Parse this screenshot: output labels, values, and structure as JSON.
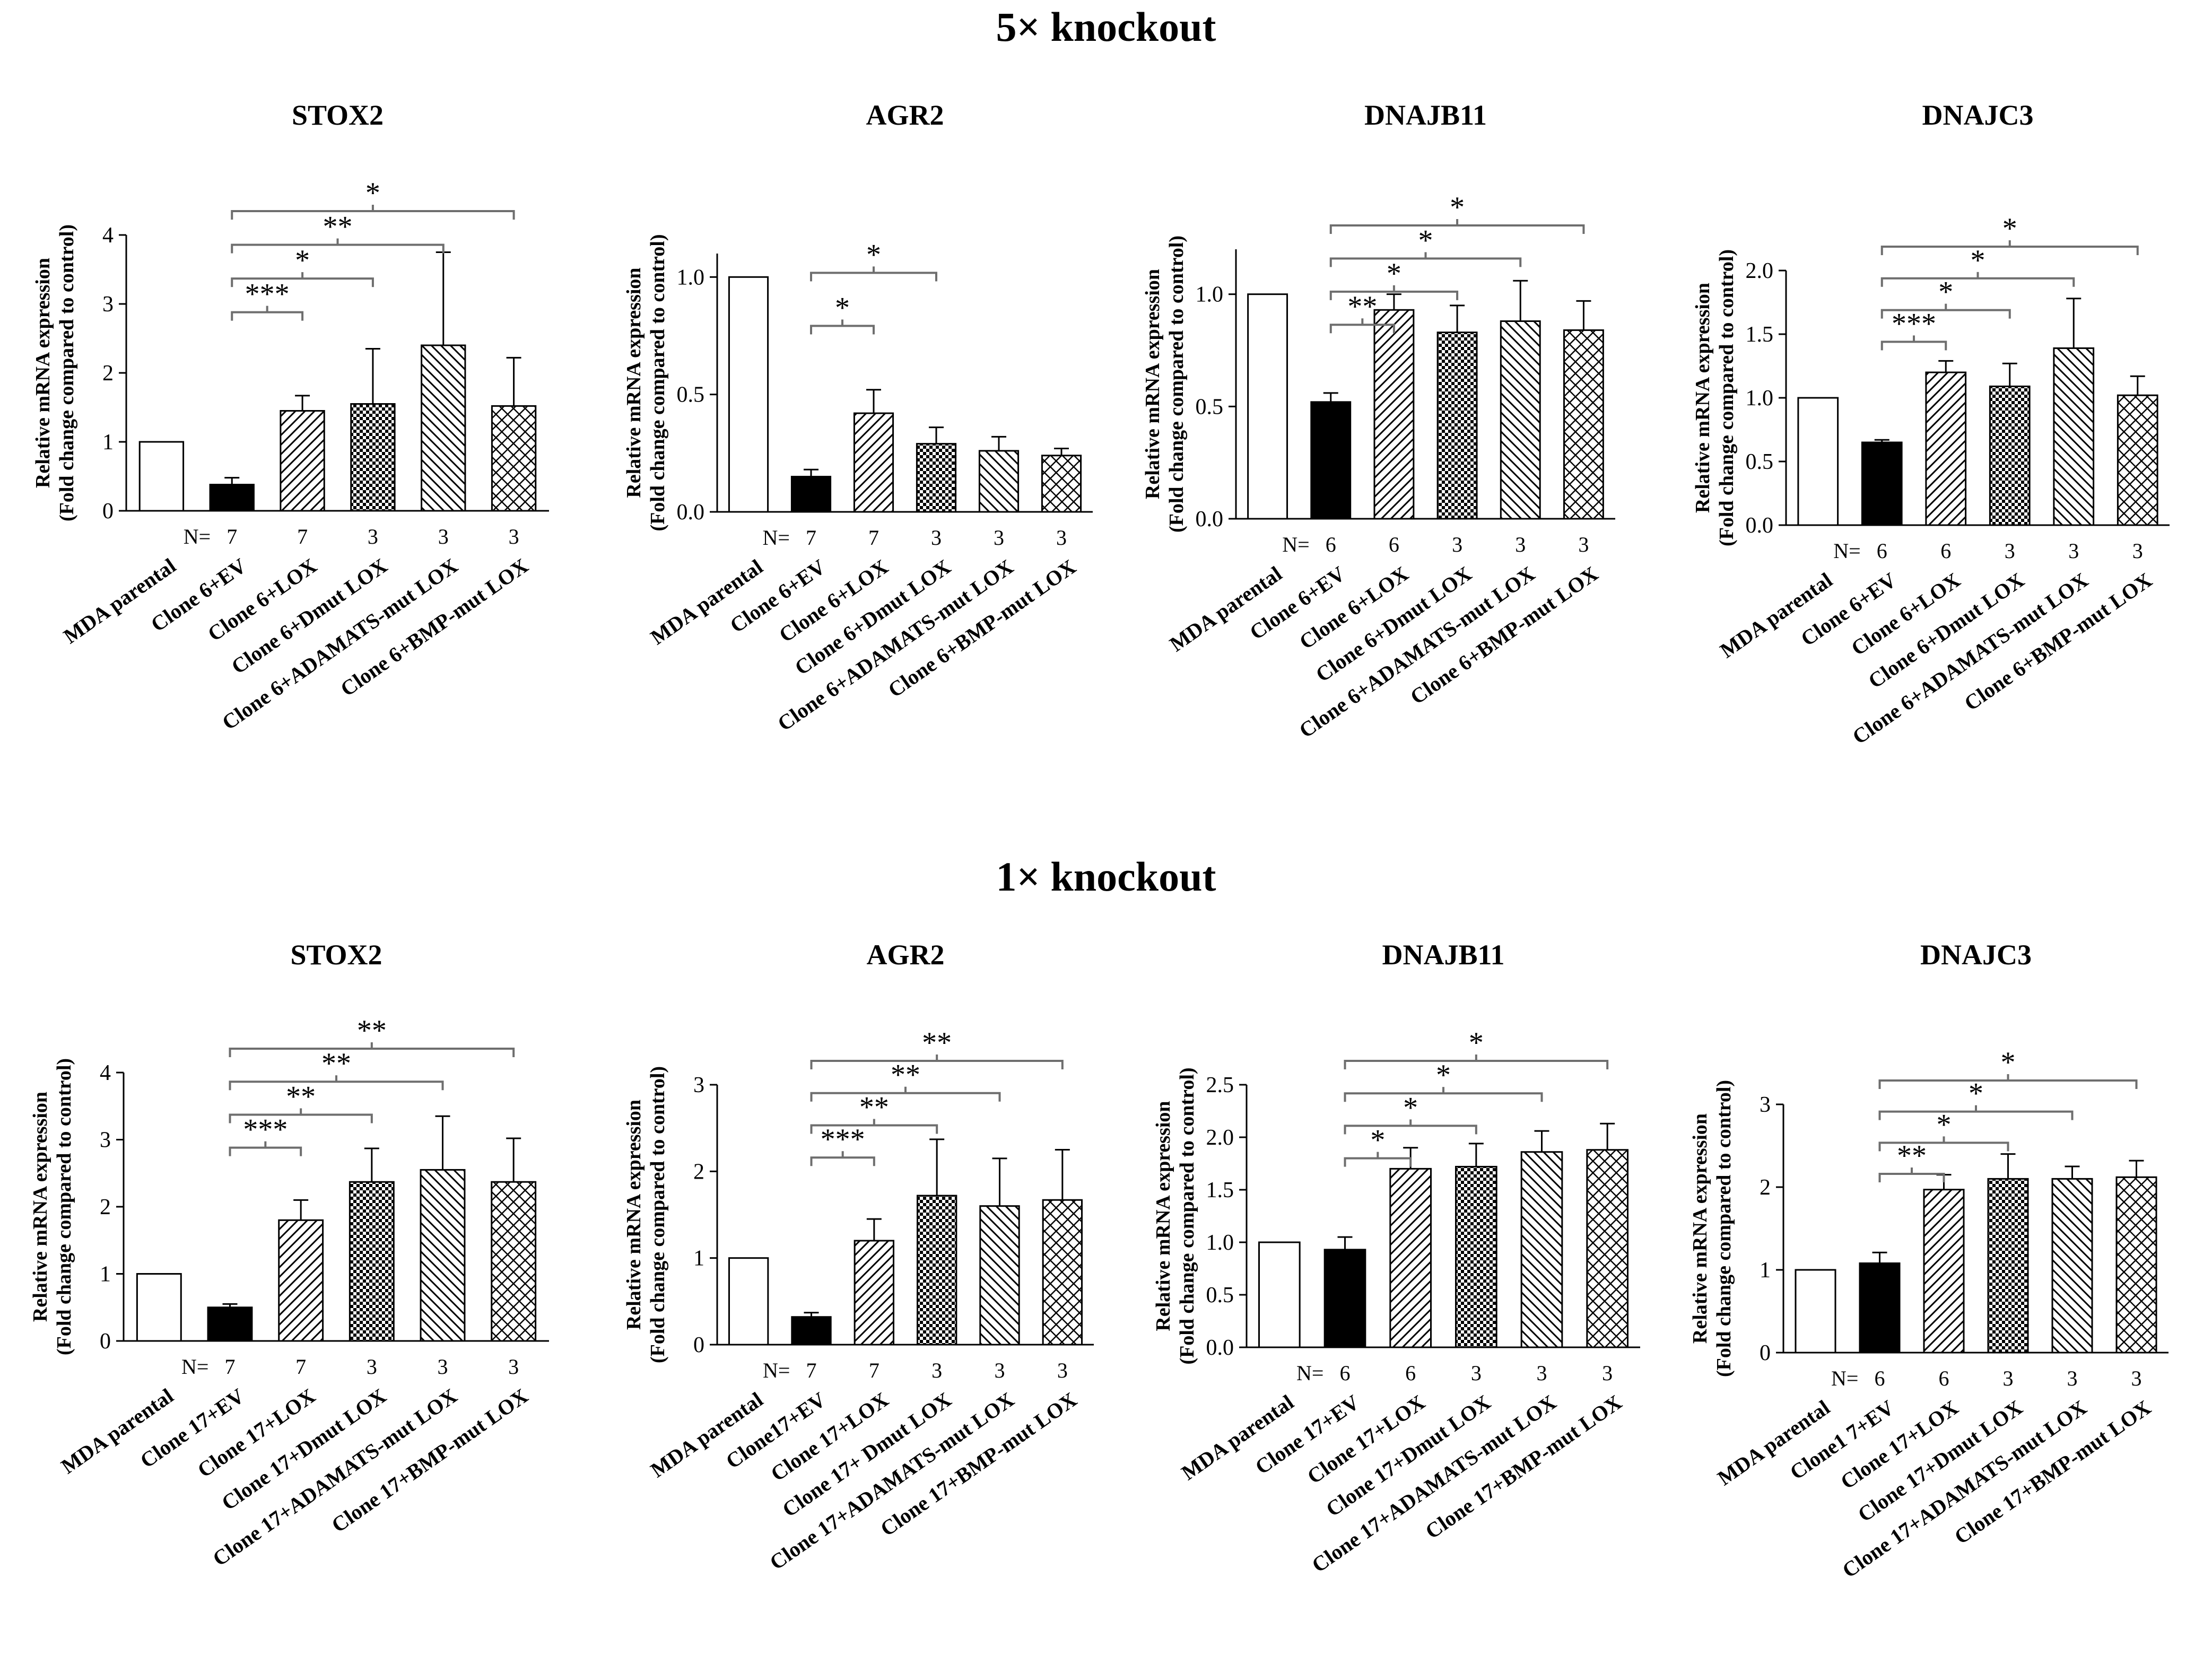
{
  "sections": [
    {
      "title": "5× knockout"
    },
    {
      "title": "1× knockout"
    }
  ],
  "colors": {
    "axis": "#000000",
    "bracket": "#6e6e6e",
    "bar_fill": "#ffffff",
    "solid": "#000000"
  },
  "chart_data": [
    {
      "type": "bar",
      "title": "STOX2",
      "ylabel": "Relative mRNA expression",
      "ylabel2": "(Fold change compared to control)",
      "categories": [
        "MDA parental",
        "Clone 6+EV",
        "Clone 6+LOX",
        "Clone 6+Dmut LOX",
        "Clone 6+ADAMATS-mut LOX",
        "Clone 6+BMP-mut LOX"
      ],
      "values": [
        1.0,
        0.38,
        1.45,
        1.55,
        2.4,
        1.52
      ],
      "errors": [
        null,
        0.1,
        0.22,
        0.8,
        1.35,
        0.7
      ],
      "patterns": [
        "open",
        "solid",
        "diag",
        "checker",
        "backdiag",
        "cross"
      ],
      "n_label": "N=",
      "n_values": [
        "7",
        "7",
        "3",
        "3",
        "3"
      ],
      "ylim": [
        0,
        4
      ],
      "yticks": [
        "0",
        "1",
        "2",
        "3",
        "4"
      ],
      "significance": [
        {
          "from": 1,
          "to": 2,
          "label": "***"
        },
        {
          "from": 1,
          "to": 3,
          "label": "*"
        },
        {
          "from": 1,
          "to": 4,
          "label": "**"
        },
        {
          "from": 1,
          "to": 5,
          "label": "*"
        }
      ]
    },
    {
      "type": "bar",
      "title": "AGR2",
      "ylabel": "Relative mRNA expression",
      "ylabel2": "(Fold change compared to control)",
      "categories": [
        "MDA parental",
        "Clone 6+EV",
        "Clone 6+LOX",
        "Clone 6+Dmut LOX",
        "Clone 6+ADAMATS-mut LOX",
        "Clone 6+BMP-mut LOX"
      ],
      "values": [
        1.0,
        0.15,
        0.42,
        0.29,
        0.26,
        0.24
      ],
      "errors": [
        null,
        0.03,
        0.1,
        0.07,
        0.06,
        0.03
      ],
      "patterns": [
        "open",
        "solid",
        "diag",
        "checker",
        "backdiag",
        "cross"
      ],
      "n_label": "N=",
      "n_values": [
        "7",
        "7",
        "3",
        "3",
        "3"
      ],
      "ylim": [
        0,
        1.1
      ],
      "yticks": [
        "0.0",
        "0.5",
        "1.0"
      ],
      "significance": [
        {
          "from": 1,
          "to": 2,
          "label": "*"
        },
        {
          "from": 1,
          "to": 3,
          "label": "*"
        }
      ]
    },
    {
      "type": "bar",
      "title": "DNAJB11",
      "ylabel": "Relative mRNA expression",
      "ylabel2": "(Fold change compared to control)",
      "categories": [
        "MDA parental",
        "Clone 6+EV",
        "Clone 6+LOX",
        "Clone 6+Dmut LOX",
        "Clone 6+ADAMATS-mut LOX",
        "Clone 6+BMP-mut LOX"
      ],
      "values": [
        1.0,
        0.52,
        0.93,
        0.83,
        0.88,
        0.84
      ],
      "errors": [
        null,
        0.04,
        0.07,
        0.12,
        0.18,
        0.13
      ],
      "patterns": [
        "open",
        "solid",
        "diag",
        "checker",
        "backdiag",
        "cross"
      ],
      "n_label": "N=",
      "n_values": [
        "6",
        "6",
        "3",
        "3",
        "3"
      ],
      "ylim": [
        0,
        1.2
      ],
      "yticks": [
        "0.0",
        "0.5",
        "1.0"
      ],
      "significance": [
        {
          "from": 1,
          "to": 2,
          "label": "**"
        },
        {
          "from": 1,
          "to": 3,
          "label": "*"
        },
        {
          "from": 1,
          "to": 4,
          "label": "*"
        },
        {
          "from": 1,
          "to": 5,
          "label": "*"
        }
      ]
    },
    {
      "type": "bar",
      "title": "DNAJC3",
      "ylabel": "Relative mRNA expression",
      "ylabel2": "(Fold change compared to control)",
      "categories": [
        "MDA parental",
        "Clone 6+EV",
        "Clone 6+LOX",
        "Clone 6+Dmut LOX",
        "Clone 6+ADAMATS-mut LOX",
        "Clone 6+BMP-mut LOX"
      ],
      "values": [
        1.0,
        0.65,
        1.2,
        1.09,
        1.39,
        1.02
      ],
      "errors": [
        null,
        0.02,
        0.09,
        0.18,
        0.39,
        0.15
      ],
      "patterns": [
        "open",
        "solid",
        "diag",
        "checker",
        "backdiag",
        "cross"
      ],
      "n_label": "N=",
      "n_values": [
        "6",
        "6",
        "3",
        "3",
        "3"
      ],
      "ylim": [
        0,
        2.0
      ],
      "yticks": [
        "0.0",
        "0.5",
        "1.0",
        "1.5",
        "2.0"
      ],
      "significance": [
        {
          "from": 1,
          "to": 2,
          "label": "***"
        },
        {
          "from": 1,
          "to": 3,
          "label": "*"
        },
        {
          "from": 1,
          "to": 4,
          "label": "*"
        },
        {
          "from": 1,
          "to": 5,
          "label": "*"
        }
      ]
    },
    {
      "type": "bar",
      "title": "STOX2",
      "ylabel": "Relative mRNA expression",
      "ylabel2": "(Fold change compared to control)",
      "categories": [
        "MDA parental",
        "Clone 17+EV",
        "Clone 17+LOX",
        "Clone 17+Dmut LOX",
        "Clone 17+ADAMATS-mut LOX",
        "Clone 17+BMP-mut LOX"
      ],
      "values": [
        1.0,
        0.5,
        1.8,
        2.37,
        2.55,
        2.37
      ],
      "errors": [
        null,
        0.05,
        0.3,
        0.5,
        0.8,
        0.65
      ],
      "patterns": [
        "open",
        "solid",
        "diag",
        "checker",
        "backdiag",
        "cross"
      ],
      "n_label": "N=",
      "n_values": [
        "7",
        "7",
        "3",
        "3",
        "3"
      ],
      "ylim": [
        0,
        4
      ],
      "yticks": [
        "0",
        "1",
        "2",
        "3",
        "4"
      ],
      "significance": [
        {
          "from": 1,
          "to": 2,
          "label": "***"
        },
        {
          "from": 1,
          "to": 3,
          "label": "**"
        },
        {
          "from": 1,
          "to": 4,
          "label": "**"
        },
        {
          "from": 1,
          "to": 5,
          "label": "**"
        }
      ]
    },
    {
      "type": "bar",
      "title": "AGR2",
      "ylabel": "Relative mRNA expression",
      "ylabel2": "(Fold change compared to control)",
      "categories": [
        "MDA parental",
        "Clone17+EV",
        "Clone 17+LOX",
        "Clone 17+ Dmut LOX",
        "Clone 17+ADAMATS-mut LOX",
        "Clone 17+BMP-mut LOX"
      ],
      "values": [
        1.0,
        0.32,
        1.2,
        1.72,
        1.6,
        1.67
      ],
      "errors": [
        null,
        0.05,
        0.25,
        0.65,
        0.55,
        0.58
      ],
      "patterns": [
        "open",
        "solid",
        "diag",
        "checker",
        "backdiag",
        "cross"
      ],
      "n_label": "N=",
      "n_values": [
        "7",
        "7",
        "3",
        "3",
        "3"
      ],
      "ylim": [
        0,
        3
      ],
      "yticks": [
        "0",
        "1",
        "2",
        "3"
      ],
      "significance": [
        {
          "from": 1,
          "to": 2,
          "label": "***"
        },
        {
          "from": 1,
          "to": 3,
          "label": "**"
        },
        {
          "from": 1,
          "to": 4,
          "label": "**"
        },
        {
          "from": 1,
          "to": 5,
          "label": "**"
        }
      ]
    },
    {
      "type": "bar",
      "title": "DNAJB11",
      "ylabel": "Relative mRNA expression",
      "ylabel2": "(Fold change compared to control)",
      "categories": [
        "MDA parental",
        "Clone 17+EV",
        "Clone 17+LOX",
        "Clone 17+Dmut LOX",
        "Clone 17+ADAMATS-mut LOX",
        "Clone 17+BMP-mut LOX"
      ],
      "values": [
        1.0,
        0.93,
        1.7,
        1.72,
        1.86,
        1.88
      ],
      "errors": [
        null,
        0.12,
        0.2,
        0.22,
        0.2,
        0.25
      ],
      "patterns": [
        "open",
        "solid",
        "diag",
        "checker",
        "backdiag",
        "cross"
      ],
      "n_label": "N=",
      "n_values": [
        "6",
        "6",
        "3",
        "3",
        "3"
      ],
      "ylim": [
        0,
        2.5
      ],
      "yticks": [
        "0.0",
        "0.5",
        "1.0",
        "1.5",
        "2.0",
        "2.5"
      ],
      "significance": [
        {
          "from": 1,
          "to": 2,
          "label": "*"
        },
        {
          "from": 1,
          "to": 3,
          "label": "*"
        },
        {
          "from": 1,
          "to": 4,
          "label": "*"
        },
        {
          "from": 1,
          "to": 5,
          "label": "*"
        }
      ]
    },
    {
      "type": "bar",
      "title": "DNAJC3",
      "ylabel": "Relative mRNA expression",
      "ylabel2": "(Fold change compared to control)",
      "categories": [
        "MDA parental",
        "Clone1 7+EV",
        "Clone 17+LOX",
        "Clone 17+Dmut LOX",
        "Clone 17+ADAMATS-mut LOX",
        "Clone 17+BMP-mut LOX"
      ],
      "values": [
        1.0,
        1.08,
        1.97,
        2.1,
        2.1,
        2.12
      ],
      "errors": [
        null,
        0.13,
        0.18,
        0.3,
        0.15,
        0.2
      ],
      "patterns": [
        "open",
        "solid",
        "diag",
        "checker",
        "backdiag",
        "cross"
      ],
      "n_label": "N=",
      "n_values": [
        "6",
        "6",
        "3",
        "3",
        "3"
      ],
      "ylim": [
        0,
        3
      ],
      "yticks": [
        "0",
        "1",
        "2",
        "3"
      ],
      "significance": [
        {
          "from": 1,
          "to": 2,
          "label": "**"
        },
        {
          "from": 1,
          "to": 3,
          "label": "*"
        },
        {
          "from": 1,
          "to": 4,
          "label": "*"
        },
        {
          "from": 1,
          "to": 5,
          "label": "*"
        }
      ]
    }
  ]
}
